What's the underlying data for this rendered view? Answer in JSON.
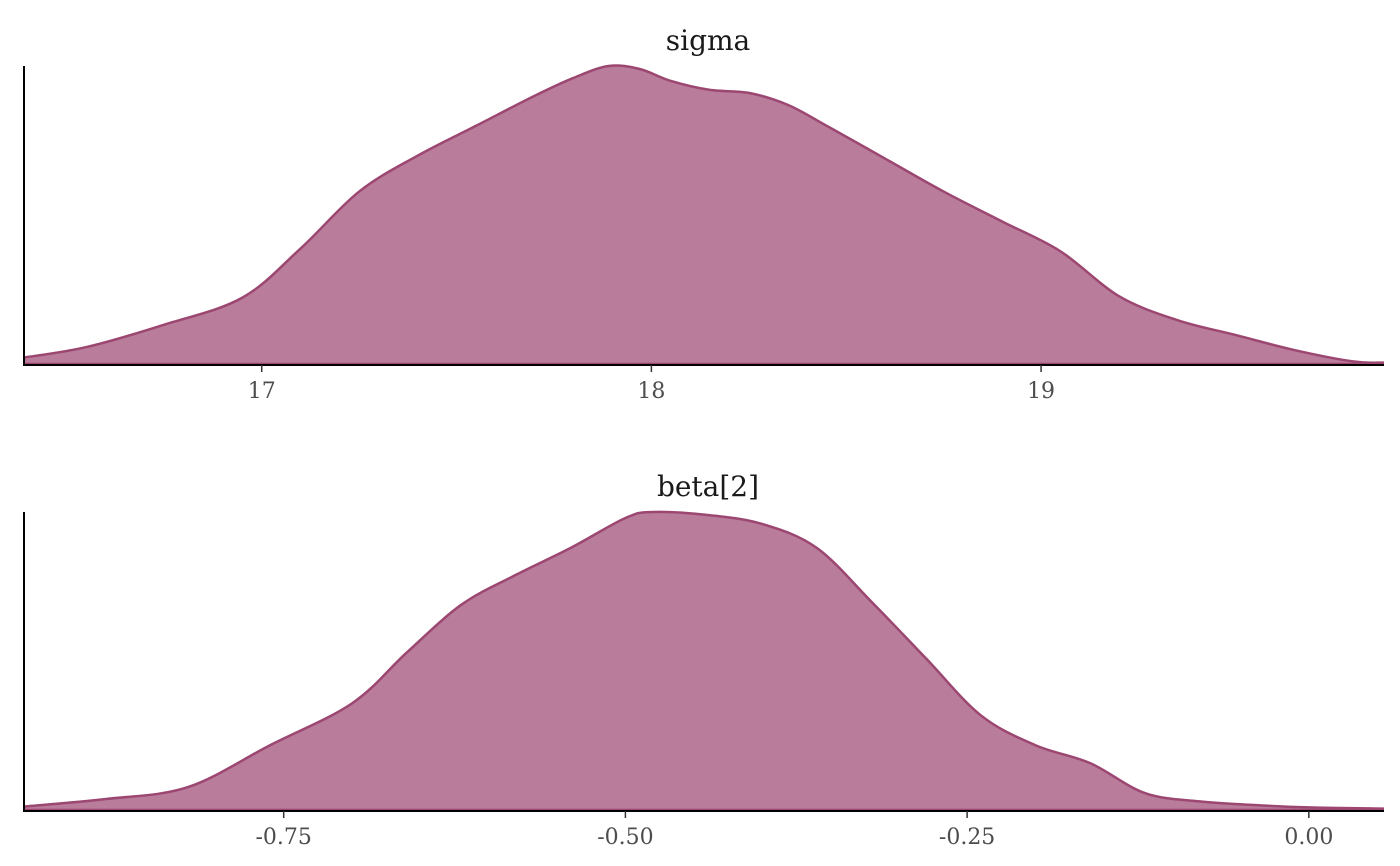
{
  "chart_data": [
    {
      "type": "area",
      "title": "sigma",
      "xlabel": "",
      "ylabel": "",
      "xlim": [
        16.39,
        19.88
      ],
      "ylim": [
        0,
        1.0
      ],
      "xticks": [
        17,
        18,
        19
      ],
      "tick_labels": [
        "17",
        "18",
        "19"
      ],
      "grid": false,
      "series": [
        {
          "x": [
            16.39,
            16.55,
            16.75,
            16.95,
            17.1,
            17.25,
            17.4,
            17.55,
            17.7,
            17.8,
            17.89,
            17.97,
            18.05,
            18.15,
            18.25,
            18.35,
            18.45,
            18.6,
            18.75,
            18.9,
            19.05,
            19.2,
            19.35,
            19.5,
            19.65,
            19.8,
            19.88
          ],
          "y": [
            0.025,
            0.06,
            0.135,
            0.225,
            0.39,
            0.58,
            0.7,
            0.8,
            0.9,
            0.96,
            1.0,
            0.99,
            0.95,
            0.92,
            0.91,
            0.87,
            0.8,
            0.69,
            0.58,
            0.48,
            0.38,
            0.23,
            0.15,
            0.1,
            0.05,
            0.012,
            0.008
          ]
        }
      ],
      "fill_color": "#b97c9b",
      "line_color": "#9c4771"
    },
    {
      "type": "area",
      "title": "beta[2]",
      "xlabel": "",
      "ylabel": "",
      "xlim": [
        -0.94,
        0.055
      ],
      "ylim": [
        0,
        1.0
      ],
      "xticks": [
        -0.75,
        -0.5,
        -0.25,
        0.0
      ],
      "tick_labels": [
        "-0.75",
        "-0.50",
        "-0.25",
        "0.00"
      ],
      "grid": false,
      "series": [
        {
          "x": [
            -0.94,
            -0.88,
            -0.82,
            -0.76,
            -0.7,
            -0.66,
            -0.62,
            -0.58,
            -0.54,
            -0.5,
            -0.48,
            -0.44,
            -0.4,
            -0.36,
            -0.32,
            -0.28,
            -0.24,
            -0.2,
            -0.16,
            -0.12,
            -0.08,
            -0.04,
            0.0,
            0.055
          ],
          "y": [
            0.015,
            0.04,
            0.08,
            0.22,
            0.36,
            0.53,
            0.69,
            0.79,
            0.88,
            0.98,
            1.0,
            0.99,
            0.96,
            0.88,
            0.7,
            0.51,
            0.32,
            0.22,
            0.16,
            0.06,
            0.032,
            0.02,
            0.012,
            0.008
          ]
        }
      ],
      "fill_color": "#b97c9b",
      "line_color": "#9c4771"
    }
  ]
}
